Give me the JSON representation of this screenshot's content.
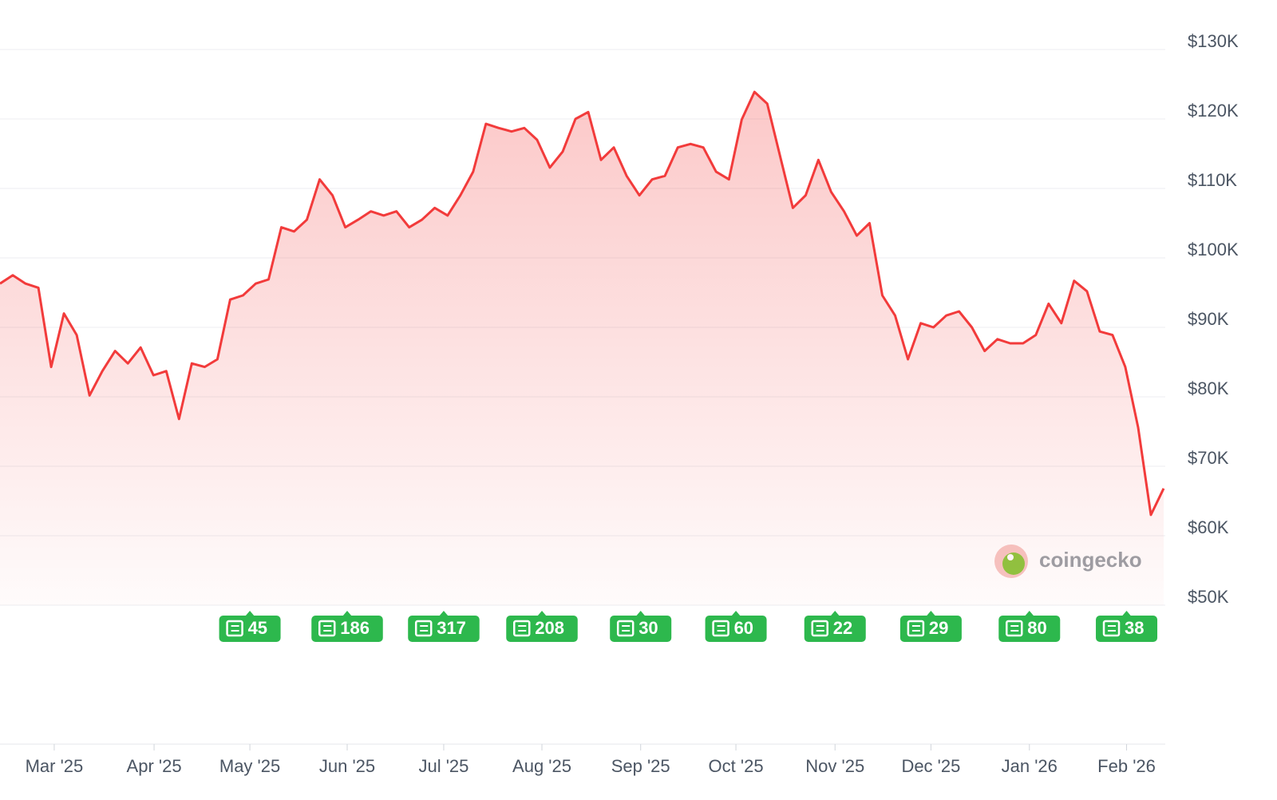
{
  "chart_data": {
    "type": "area",
    "series": [
      {
        "name": null,
        "color": "#f23b3b",
        "values": [
          96.3,
          97.5,
          96.3,
          95.7,
          84.3,
          92,
          88.9,
          80.2,
          83.7,
          86.6,
          84.8,
          87.1,
          83.1,
          83.7,
          76.8,
          84.8,
          84.3,
          85.4,
          94,
          94.6,
          96.3,
          96.9,
          104.4,
          103.8,
          105.5,
          111.3,
          109,
          104.4,
          105.5,
          106.7,
          106.1,
          106.7,
          104.4,
          105.5,
          107.2,
          106.1,
          109,
          112.4,
          119.3,
          118.7,
          118.2,
          118.7,
          117,
          113,
          115.3,
          120,
          121,
          114.1,
          115.9,
          111.8,
          109,
          111.3,
          111.8,
          115.9,
          116.4,
          115.9,
          112.4,
          111.3,
          119.9,
          123.9,
          122.2,
          114.7,
          107.2,
          109,
          114.1,
          109.5,
          106.7,
          103.2,
          105,
          94.6,
          91.7,
          85.4,
          90.6,
          90,
          91.7,
          92.3,
          90,
          86.6,
          88.3,
          87.7,
          87.7,
          88.9,
          93.4,
          90.6,
          96.7,
          95.2,
          89.4,
          88.9,
          84.3,
          75.6,
          63,
          66.8
        ]
      }
    ],
    "value_scale": 1000,
    "xlim": [
      0,
      91
    ],
    "xticks": [
      {
        "value": 4.24,
        "label": "Mar '25"
      },
      {
        "value": 12.05,
        "label": "Apr '25"
      },
      {
        "value": 19.54,
        "label": "May '25"
      },
      {
        "value": 27.15,
        "label": "Jun '25"
      },
      {
        "value": 34.7,
        "label": "Jul '25"
      },
      {
        "value": 42.38,
        "label": "Aug '25"
      },
      {
        "value": 50.1,
        "label": "Sep '25"
      },
      {
        "value": 57.55,
        "label": "Oct '25"
      },
      {
        "value": 65.3,
        "label": "Nov '25"
      },
      {
        "value": 72.8,
        "label": "Dec '25"
      },
      {
        "value": 80.5,
        "label": "Jan '26"
      },
      {
        "value": 88.1,
        "label": "Feb '26"
      }
    ],
    "ylim": [
      50000,
      130000
    ],
    "yticks": [
      {
        "value": 50000,
        "label": "$50K"
      },
      {
        "value": 60000,
        "label": "$60K"
      },
      {
        "value": 70000,
        "label": "$70K"
      },
      {
        "value": 80000,
        "label": "$80K"
      },
      {
        "value": 90000,
        "label": "$90K"
      },
      {
        "value": 100000,
        "label": "$100K"
      },
      {
        "value": 110000,
        "label": "$110K"
      },
      {
        "value": 120000,
        "label": "$120K"
      },
      {
        "value": 130000,
        "label": "$130K"
      }
    ],
    "grid": true,
    "news": [
      {
        "x": 19.54,
        "count": 45
      },
      {
        "x": 27.15,
        "count": 186
      },
      {
        "x": 34.7,
        "count": 317
      },
      {
        "x": 42.38,
        "count": 208
      },
      {
        "x": 50.1,
        "count": 30
      },
      {
        "x": 57.55,
        "count": 60
      },
      {
        "x": 65.3,
        "count": 22
      },
      {
        "x": 72.8,
        "count": 29
      },
      {
        "x": 80.5,
        "count": 80
      },
      {
        "x": 88.1,
        "count": 38
      }
    ],
    "news_color": "#2db84d",
    "watermark": "coingecko"
  }
}
